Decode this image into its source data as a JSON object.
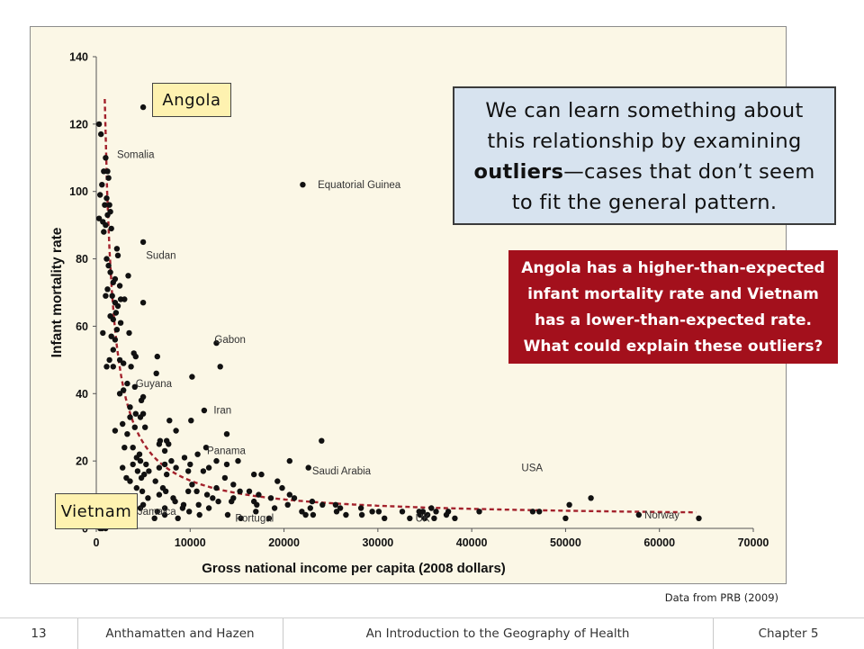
{
  "chart_data": {
    "type": "scatter",
    "xlabel": "Gross national income per capita (2008 dollars)",
    "ylabel": "Infant mortality rate",
    "xlim": [
      0,
      70000
    ],
    "ylim": [
      0,
      140
    ],
    "x_ticks": [
      "0",
      "10000",
      "20000",
      "30000",
      "40000",
      "50000",
      "60000",
      "70000"
    ],
    "y_ticks": [
      "0",
      "20",
      "40",
      "60",
      "80",
      "100",
      "120",
      "140"
    ],
    "grid": false,
    "trend": "dashed hyperbolic trend curve",
    "colors": {
      "points": "#111111",
      "trend": "#a3222c",
      "background": "#fbf7e6"
    },
    "points": [
      [
        5000,
        125
      ],
      [
        300,
        120
      ],
      [
        500,
        117
      ],
      [
        1000,
        110
      ],
      [
        800,
        106
      ],
      [
        1200,
        106
      ],
      [
        1300,
        104
      ],
      [
        600,
        102
      ],
      [
        400,
        99
      ],
      [
        1100,
        98
      ],
      [
        22000,
        102
      ],
      [
        900,
        96
      ],
      [
        1400,
        96
      ],
      [
        1500,
        94
      ],
      [
        1200,
        93
      ],
      [
        700,
        91
      ],
      [
        300,
        92
      ],
      [
        1000,
        90
      ],
      [
        1600,
        89
      ],
      [
        800,
        88
      ],
      [
        5000,
        85
      ],
      [
        2200,
        83
      ],
      [
        2300,
        81
      ],
      [
        1100,
        80
      ],
      [
        1300,
        78
      ],
      [
        3400,
        75
      ],
      [
        1500,
        76
      ],
      [
        2000,
        74
      ],
      [
        1800,
        73
      ],
      [
        2500,
        72
      ],
      [
        1200,
        71
      ],
      [
        1000,
        69
      ],
      [
        1700,
        69
      ],
      [
        2600,
        68
      ],
      [
        3000,
        68
      ],
      [
        2000,
        67
      ],
      [
        5000,
        67
      ],
      [
        2300,
        66
      ],
      [
        2100,
        64
      ],
      [
        1500,
        63
      ],
      [
        1800,
        62
      ],
      [
        2600,
        61
      ],
      [
        2200,
        59
      ],
      [
        3500,
        58
      ],
      [
        700,
        58
      ],
      [
        1600,
        57
      ],
      [
        2000,
        56
      ],
      [
        12800,
        55
      ],
      [
        1800,
        53
      ],
      [
        4000,
        52
      ],
      [
        4200,
        51
      ],
      [
        6500,
        51
      ],
      [
        2500,
        50
      ],
      [
        1400,
        50
      ],
      [
        2900,
        49
      ],
      [
        1800,
        48
      ],
      [
        3700,
        48
      ],
      [
        13200,
        48
      ],
      [
        1100,
        48
      ],
      [
        6400,
        46
      ],
      [
        10200,
        45
      ],
      [
        3300,
        43
      ],
      [
        4100,
        42
      ],
      [
        2900,
        41
      ],
      [
        5000,
        39
      ],
      [
        2500,
        40
      ],
      [
        4800,
        38
      ],
      [
        3600,
        36
      ],
      [
        11500,
        35
      ],
      [
        5000,
        34
      ],
      [
        4200,
        34
      ],
      [
        3600,
        33
      ],
      [
        4700,
        33
      ],
      [
        10100,
        32
      ],
      [
        7800,
        32
      ],
      [
        2800,
        31
      ],
      [
        4100,
        30
      ],
      [
        5200,
        30
      ],
      [
        2000,
        29
      ],
      [
        8500,
        29
      ],
      [
        3300,
        28
      ],
      [
        13900,
        28
      ],
      [
        6800,
        26
      ],
      [
        24000,
        26
      ],
      [
        7500,
        26
      ],
      [
        6700,
        25
      ],
      [
        7700,
        25
      ],
      [
        3900,
        24
      ],
      [
        11700,
        24
      ],
      [
        3000,
        24
      ],
      [
        7300,
        23
      ],
      [
        4600,
        22
      ],
      [
        10800,
        22
      ],
      [
        9400,
        21
      ],
      [
        4300,
        21
      ],
      [
        8000,
        20
      ],
      [
        4700,
        20
      ],
      [
        12800,
        20
      ],
      [
        15100,
        20
      ],
      [
        20600,
        20
      ],
      [
        3900,
        19
      ],
      [
        5300,
        19
      ],
      [
        7300,
        19
      ],
      [
        10000,
        19
      ],
      [
        13900,
        19
      ],
      [
        2800,
        18
      ],
      [
        6700,
        18
      ],
      [
        8500,
        18
      ],
      [
        12000,
        18
      ],
      [
        22600,
        18
      ],
      [
        4400,
        17
      ],
      [
        5600,
        17
      ],
      [
        9800,
        17
      ],
      [
        11400,
        17
      ],
      [
        5100,
        16
      ],
      [
        7500,
        16
      ],
      [
        16800,
        16
      ],
      [
        17600,
        16
      ],
      [
        3200,
        15
      ],
      [
        4800,
        15
      ],
      [
        13700,
        15
      ],
      [
        3600,
        14
      ],
      [
        6300,
        14
      ],
      [
        19300,
        14
      ],
      [
        10200,
        13
      ],
      [
        14600,
        13
      ],
      [
        4300,
        12
      ],
      [
        7100,
        12
      ],
      [
        12800,
        12
      ],
      [
        19800,
        12
      ],
      [
        4900,
        11
      ],
      [
        7400,
        11
      ],
      [
        9800,
        11
      ],
      [
        10700,
        11
      ],
      [
        15300,
        11
      ],
      [
        16300,
        11
      ],
      [
        6700,
        10
      ],
      [
        11800,
        10
      ],
      [
        17300,
        10
      ],
      [
        20600,
        10
      ],
      [
        5500,
        9
      ],
      [
        8200,
        9
      ],
      [
        12400,
        9
      ],
      [
        14600,
        9
      ],
      [
        18600,
        9
      ],
      [
        21100,
        9
      ],
      [
        52700,
        9
      ],
      [
        8400,
        8
      ],
      [
        13000,
        8
      ],
      [
        14400,
        8
      ],
      [
        16800,
        8
      ],
      [
        23000,
        8
      ],
      [
        50400,
        7
      ],
      [
        5000,
        7
      ],
      [
        9300,
        7
      ],
      [
        10900,
        7
      ],
      [
        17100,
        7
      ],
      [
        20400,
        7
      ],
      [
        24100,
        7
      ],
      [
        25500,
        7
      ],
      [
        4700,
        6
      ],
      [
        7300,
        6
      ],
      [
        9200,
        6
      ],
      [
        12000,
        6
      ],
      [
        19000,
        6
      ],
      [
        22800,
        6
      ],
      [
        26000,
        6
      ],
      [
        28200,
        6
      ],
      [
        35700,
        6
      ],
      [
        6500,
        5
      ],
      [
        9900,
        5
      ],
      [
        17000,
        5
      ],
      [
        21900,
        5
      ],
      [
        25600,
        5
      ],
      [
        29400,
        5
      ],
      [
        30100,
        5
      ],
      [
        32600,
        5
      ],
      [
        34400,
        5
      ],
      [
        34800,
        5
      ],
      [
        36200,
        5
      ],
      [
        37500,
        5
      ],
      [
        40800,
        5
      ],
      [
        46500,
        5
      ],
      [
        47200,
        5
      ],
      [
        7300,
        4
      ],
      [
        11000,
        4
      ],
      [
        14000,
        4
      ],
      [
        22300,
        4
      ],
      [
        23100,
        4
      ],
      [
        26600,
        4
      ],
      [
        28300,
        4
      ],
      [
        34500,
        4
      ],
      [
        35300,
        4
      ],
      [
        37300,
        4
      ],
      [
        57800,
        4
      ],
      [
        6200,
        3
      ],
      [
        8700,
        3
      ],
      [
        15400,
        3
      ],
      [
        18400,
        3
      ],
      [
        30700,
        3
      ],
      [
        33400,
        3
      ],
      [
        35000,
        3
      ],
      [
        36000,
        3
      ],
      [
        38200,
        3
      ],
      [
        50000,
        3
      ],
      [
        64200,
        3
      ],
      [
        1000,
        0
      ],
      [
        600,
        0
      ],
      [
        400,
        0
      ]
    ],
    "annotations": [
      {
        "label": "Somalia",
        "x": 2200,
        "y": 110
      },
      {
        "label": "Equatorial Guinea",
        "x": 23600,
        "y": 101
      },
      {
        "label": "Sudan",
        "x": 5300,
        "y": 80
      },
      {
        "label": "Gabon",
        "x": 12600,
        "y": 55
      },
      {
        "label": "Guyana",
        "x": 4200,
        "y": 42
      },
      {
        "label": "Iran",
        "x": 12500,
        "y": 34
      },
      {
        "label": "Panama",
        "x": 11800,
        "y": 22
      },
      {
        "label": "Saudi Arabia",
        "x": 23000,
        "y": 16
      },
      {
        "label": "Jamaica",
        "x": 4400,
        "y": 4
      },
      {
        "label": "Portugal",
        "x": 14800,
        "y": 2
      },
      {
        "label": "UK",
        "x": 34000,
        "y": 2
      },
      {
        "label": "USA",
        "x": 45300,
        "y": 17
      },
      {
        "label": "Norway",
        "x": 58400,
        "y": 3
      }
    ]
  },
  "callouts": {
    "angola": "Angola",
    "vietnam": "Vietnam",
    "blue_pre": "We can learn something about this relationship by examining ",
    "blue_bold": "outliers",
    "blue_post": "—cases that don’t seem to fit the general pattern.",
    "red": "Angola has a higher-than-expected infant mortality rate and Vietnam has a lower-than-expected rate. What could explain these outliers?"
  },
  "source": "Data from PRB (2009)",
  "footer": {
    "slide_number": "13",
    "authors": "Anthamatten and Hazen",
    "book": "An Introduction to the Geography of Health",
    "chapter": "Chapter 5"
  }
}
